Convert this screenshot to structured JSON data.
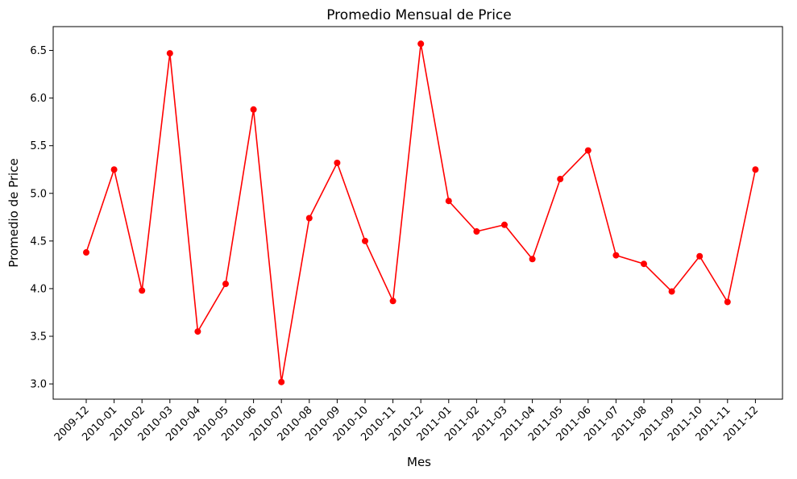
{
  "chart_data": {
    "type": "line",
    "title": "Promedio Mensual de Price",
    "xlabel": "Mes",
    "ylabel": "Promedio de Price",
    "categories": [
      "2009-12",
      "2010-01",
      "2010-02",
      "2010-03",
      "2010-04",
      "2010-05",
      "2010-06",
      "2010-07",
      "2010-08",
      "2010-09",
      "2010-10",
      "2010-11",
      "2010-12",
      "2011-01",
      "2011-02",
      "2011-03",
      "2011-04",
      "2011-05",
      "2011-06",
      "2011-07",
      "2011-08",
      "2011-09",
      "2011-10",
      "2011-11",
      "2011-12"
    ],
    "series": [
      {
        "values": [
          4.38,
          5.25,
          3.98,
          6.47,
          3.55,
          4.05,
          5.88,
          3.02,
          4.74,
          5.32,
          4.5,
          3.87,
          6.57,
          4.92,
          4.6,
          4.67,
          4.31,
          5.15,
          5.45,
          4.35,
          4.26,
          3.97,
          4.34,
          3.86,
          5.25
        ],
        "color": "#ff0000",
        "marker": "circle"
      }
    ],
    "ylim": [
      2.84,
      6.75
    ],
    "yticks": [
      "3.0",
      "3.5",
      "4.0",
      "4.5",
      "5.0",
      "5.5",
      "6.0",
      "6.5"
    ],
    "grid": false,
    "legend": "none"
  }
}
